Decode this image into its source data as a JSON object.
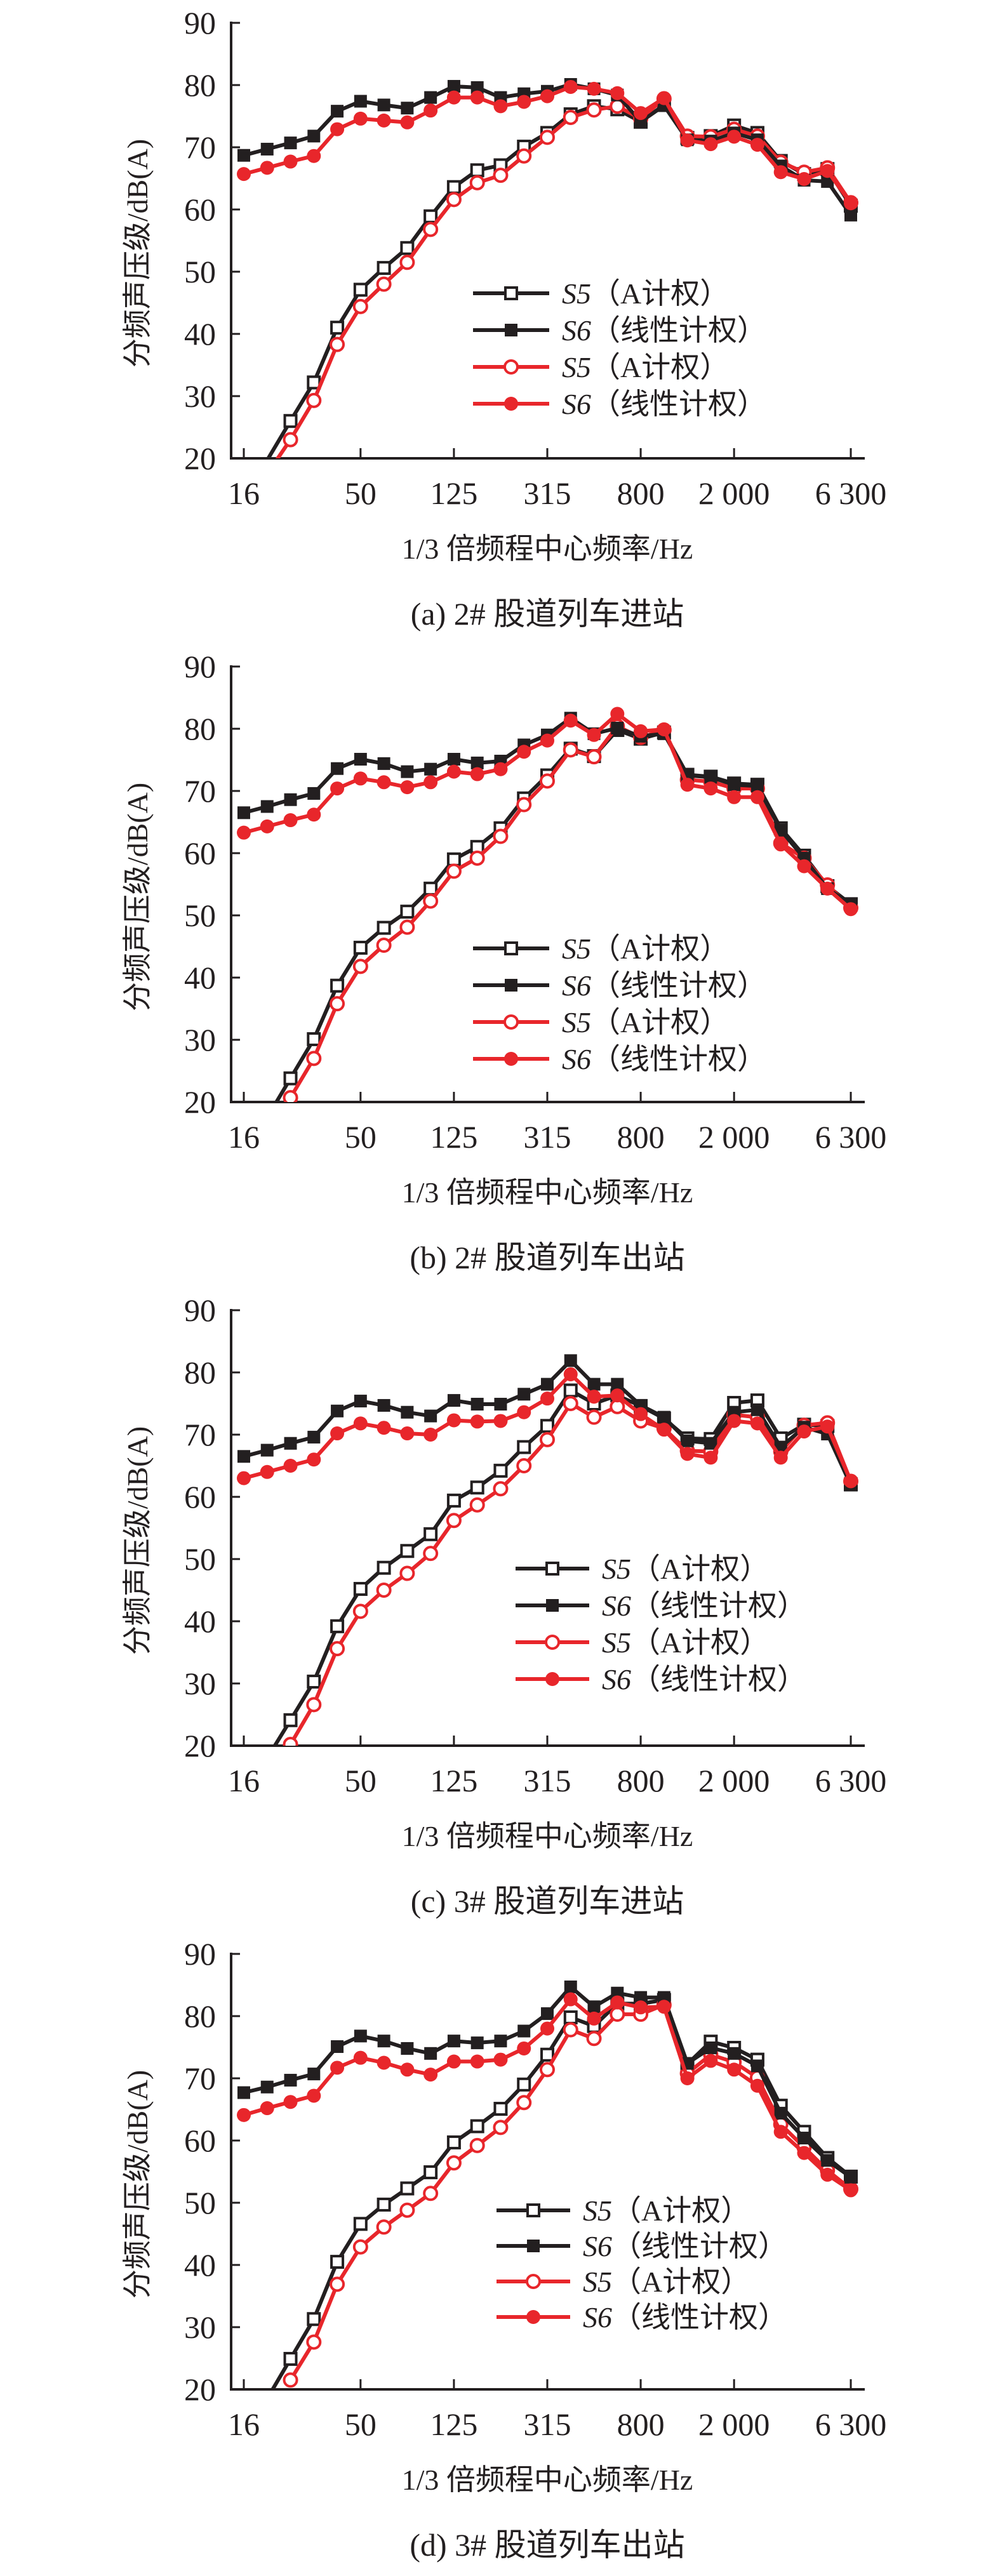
{
  "colors": {
    "black": "#231f20",
    "red": "#e8262b"
  },
  "chart_data": [
    {
      "type": "line",
      "caption": "(a) 2# 股道列车进站",
      "xlabel": "1/3 倍频程中心频率/Hz",
      "ylabel": "分频声压级/dB(A)",
      "x_scale": "categorical (log-spaced 1/3 octave bands)",
      "x": [
        16,
        20,
        25,
        31.5,
        40,
        50,
        63,
        80,
        100,
        125,
        160,
        200,
        250,
        315,
        400,
        500,
        630,
        800,
        1000,
        1250,
        1600,
        2000,
        2500,
        3150,
        4000,
        5000,
        6300
      ],
      "x_tick_labels": [
        {
          "x": 16,
          "label": "16"
        },
        {
          "x": 50,
          "label": "50"
        },
        {
          "x": 125,
          "label": "125"
        },
        {
          "x": 315,
          "label": "315"
        },
        {
          "x": 800,
          "label": "800"
        },
        {
          "x": 2000,
          "label": "2 000"
        },
        {
          "x": 6300,
          "label": "6 300"
        }
      ],
      "y_ticks": [
        20,
        30,
        40,
        50,
        60,
        70,
        80,
        90
      ],
      "ylim": [
        20,
        90
      ],
      "grid": false,
      "legend_position": "center-right",
      "series": [
        {
          "name": "S5（A计权）",
          "prefix": "S5",
          "suffix": "（A计权）",
          "color": "black",
          "marker": "open-square",
          "values": [
            null,
            19.7,
            26.0,
            32.2,
            41.0,
            47.1,
            50.6,
            53.8,
            58.9,
            63.6,
            66.3,
            67.1,
            70.1,
            72.3,
            75.3,
            76.6,
            76.1,
            74.1,
            76.8,
            71.5,
            71.8,
            73.5,
            72.3,
            67.8,
            65.7,
            66.5,
            60.6
          ]
        },
        {
          "name": "S6（线性计权）",
          "prefix": "S6",
          "suffix": "（线性计权）",
          "color": "black",
          "marker": "filled-square",
          "values": [
            68.7,
            69.7,
            70.7,
            71.8,
            75.8,
            77.4,
            76.8,
            76.3,
            78.0,
            79.8,
            79.6,
            78.0,
            78.6,
            79.0,
            80.1,
            79.4,
            78.4,
            74.1,
            76.7,
            71.2,
            71.0,
            72.3,
            71.2,
            67.0,
            64.7,
            64.5,
            59.1
          ]
        },
        {
          "name": "S5（A计权）",
          "prefix": "S5",
          "suffix": "（A计权）",
          "color": "red",
          "marker": "open-circle",
          "values": [
            null,
            17.5,
            23.0,
            29.3,
            38.3,
            44.4,
            48.0,
            51.5,
            56.8,
            61.6,
            64.3,
            65.5,
            68.6,
            71.6,
            74.8,
            76.0,
            76.6,
            74.6,
            77.8,
            71.8,
            71.7,
            72.9,
            71.8,
            67.6,
            66.0,
            66.7,
            61.1
          ]
        },
        {
          "name": "S6（线性计权）",
          "prefix": "S6",
          "suffix": "（线性计权）",
          "color": "red",
          "marker": "filled-circle",
          "values": [
            65.7,
            66.7,
            67.7,
            68.6,
            72.9,
            74.6,
            74.3,
            74.0,
            75.9,
            78.0,
            78.0,
            76.6,
            77.3,
            78.2,
            79.7,
            79.4,
            78.7,
            75.5,
            77.9,
            71.1,
            70.5,
            71.7,
            70.4,
            66.0,
            64.9,
            66.2,
            61.0
          ]
        }
      ]
    },
    {
      "type": "line",
      "caption": "(b) 2# 股道列车出站",
      "xlabel": "1/3 倍频程中心频率/Hz",
      "ylabel": "分频声压级/dB(A)",
      "x_scale": "categorical (log-spaced 1/3 octave bands)",
      "x": [
        16,
        20,
        25,
        31.5,
        40,
        50,
        63,
        80,
        100,
        125,
        160,
        200,
        250,
        315,
        400,
        500,
        630,
        800,
        1000,
        1250,
        1600,
        2000,
        2500,
        3150,
        4000,
        5000,
        6300
      ],
      "x_tick_labels": [
        {
          "x": 16,
          "label": "16"
        },
        {
          "x": 50,
          "label": "50"
        },
        {
          "x": 125,
          "label": "125"
        },
        {
          "x": 315,
          "label": "315"
        },
        {
          "x": 800,
          "label": "800"
        },
        {
          "x": 2000,
          "label": "2 000"
        },
        {
          "x": 6300,
          "label": "6 300"
        }
      ],
      "y_ticks": [
        20,
        30,
        40,
        50,
        60,
        70,
        80,
        90
      ],
      "ylim": [
        20,
        90
      ],
      "grid": false,
      "legend_position": "center-right",
      "series": [
        {
          "name": "S5（A计权）",
          "prefix": "S5",
          "suffix": "（A计权）",
          "color": "black",
          "marker": "open-square",
          "values": [
            null,
            17.5,
            23.8,
            30.1,
            38.7,
            44.8,
            48.0,
            50.6,
            54.3,
            59.0,
            61.0,
            64.0,
            68.8,
            72.5,
            76.8,
            75.6,
            79.8,
            78.4,
            79.4,
            72.6,
            72.3,
            71.2,
            71.0,
            64.0,
            59.6,
            54.7,
            51.8
          ]
        },
        {
          "name": "S6（线性计权）",
          "prefix": "S6",
          "suffix": "（线性计权）",
          "color": "black",
          "marker": "filled-square",
          "values": [
            66.5,
            67.5,
            68.6,
            69.6,
            73.6,
            75.1,
            74.4,
            73.1,
            73.5,
            75.1,
            74.5,
            74.8,
            77.4,
            79.0,
            81.7,
            79.2,
            80.1,
            78.8,
            79.2,
            72.5,
            72.2,
            71.0,
            70.8,
            63.7,
            59.2,
            54.3,
            51.8
          ]
        },
        {
          "name": "S5（A计权）",
          "prefix": "S5",
          "suffix": "（A计权）",
          "color": "red",
          "marker": "open-circle",
          "values": [
            null,
            null,
            20.7,
            27.0,
            35.8,
            41.8,
            45.2,
            48.1,
            52.3,
            57.1,
            59.2,
            62.7,
            67.8,
            71.6,
            76.6,
            75.5,
            80.4,
            78.6,
            79.8,
            71.8,
            71.5,
            70.4,
            70.4,
            61.6,
            59.2,
            54.9,
            51.2
          ]
        },
        {
          "name": "S6（线性计权）",
          "prefix": "S6",
          "suffix": "（线性计权）",
          "color": "red",
          "marker": "filled-circle",
          "values": [
            63.3,
            64.3,
            65.3,
            66.2,
            70.4,
            72.0,
            71.4,
            70.6,
            71.4,
            73.1,
            72.7,
            73.5,
            76.3,
            78.1,
            81.3,
            79.0,
            82.4,
            79.6,
            79.9,
            71.0,
            70.4,
            69.0,
            69.0,
            61.4,
            57.9,
            54.3,
            51.0
          ]
        }
      ]
    },
    {
      "type": "line",
      "caption": "(c) 3# 股道列车进站",
      "xlabel": "1/3 倍频程中心频率/Hz",
      "ylabel": "分频声压级/dB(A)",
      "x_scale": "categorical (log-spaced 1/3 octave bands)",
      "x": [
        16,
        20,
        25,
        31.5,
        40,
        50,
        63,
        80,
        100,
        125,
        160,
        200,
        250,
        315,
        400,
        500,
        630,
        800,
        1000,
        1250,
        1600,
        2000,
        2500,
        3150,
        4000,
        5000,
        6300
      ],
      "x_tick_labels": [
        {
          "x": 16,
          "label": "16"
        },
        {
          "x": 50,
          "label": "50"
        },
        {
          "x": 125,
          "label": "125"
        },
        {
          "x": 315,
          "label": "315"
        },
        {
          "x": 800,
          "label": "800"
        },
        {
          "x": 2000,
          "label": "2 000"
        },
        {
          "x": 6300,
          "label": "6 300"
        }
      ],
      "y_ticks": [
        20,
        30,
        40,
        50,
        60,
        70,
        80,
        90
      ],
      "ylim": [
        20,
        90
      ],
      "grid": false,
      "legend_position": "center-right",
      "series": [
        {
          "name": "S5（A计权）",
          "prefix": "S5",
          "suffix": "（A计权）",
          "color": "black",
          "marker": "open-square",
          "values": [
            null,
            18.0,
            24.1,
            30.3,
            39.2,
            45.2,
            48.6,
            51.3,
            54.0,
            59.4,
            61.5,
            64.2,
            68.0,
            71.4,
            77.1,
            75.0,
            76.3,
            74.6,
            72.6,
            69.4,
            69.3,
            75.1,
            75.5,
            69.4,
            71.6,
            71.4,
            62.0
          ]
        },
        {
          "name": "S6（线性计权）",
          "prefix": "S6",
          "suffix": "（线性计权）",
          "color": "black",
          "marker": "filled-square",
          "values": [
            66.5,
            67.5,
            68.6,
            69.6,
            73.8,
            75.4,
            74.7,
            73.6,
            73.0,
            75.5,
            74.9,
            74.9,
            76.5,
            78.1,
            81.9,
            78.1,
            78.1,
            74.7,
            72.8,
            69.0,
            68.6,
            73.6,
            74.0,
            68.0,
            71.2,
            70.1,
            61.9
          ]
        },
        {
          "name": "S5（A计权）",
          "prefix": "S5",
          "suffix": "（A计权）",
          "color": "red",
          "marker": "open-circle",
          "values": [
            null,
            null,
            20.2,
            26.6,
            35.6,
            41.6,
            45.0,
            47.7,
            50.9,
            56.2,
            58.7,
            61.3,
            65.0,
            69.2,
            75.0,
            72.8,
            74.5,
            72.2,
            71.0,
            67.4,
            67.3,
            73.2,
            72.8,
            67.3,
            71.5,
            71.9,
            62.5
          ]
        },
        {
          "name": "S6（线性计权）",
          "prefix": "S6",
          "suffix": "（线性计权）",
          "color": "red",
          "marker": "filled-circle",
          "values": [
            63.0,
            64.0,
            65.0,
            66.0,
            70.2,
            71.8,
            71.1,
            70.2,
            70.0,
            72.3,
            72.1,
            72.2,
            73.6,
            75.8,
            79.7,
            76.1,
            76.3,
            73.3,
            70.8,
            66.9,
            66.3,
            72.2,
            71.8,
            66.3,
            70.5,
            71.3,
            62.5
          ]
        }
      ]
    },
    {
      "type": "line",
      "caption": "(d) 3# 股道列车出站",
      "xlabel": "1/3 倍频程中心频率/Hz",
      "ylabel": "分频声压级/dB(A)",
      "x_scale": "categorical (log-spaced 1/3 octave bands)",
      "x": [
        16,
        20,
        25,
        31.5,
        40,
        50,
        63,
        80,
        100,
        125,
        160,
        200,
        250,
        315,
        400,
        500,
        630,
        800,
        1000,
        1250,
        1600,
        2000,
        2500,
        3150,
        4000,
        5000,
        6300
      ],
      "x_tick_labels": [
        {
          "x": 16,
          "label": "16"
        },
        {
          "x": 50,
          "label": "50"
        },
        {
          "x": 125,
          "label": "125"
        },
        {
          "x": 315,
          "label": "315"
        },
        {
          "x": 800,
          "label": "800"
        },
        {
          "x": 2000,
          "label": "2 000"
        },
        {
          "x": 6300,
          "label": "6 300"
        }
      ],
      "y_ticks": [
        20,
        30,
        40,
        50,
        60,
        70,
        80,
        90
      ],
      "ylim": [
        20,
        90
      ],
      "grid": false,
      "legend_position": "center-right",
      "series": [
        {
          "name": "S5（A计权）",
          "prefix": "S5",
          "suffix": "（A计权）",
          "color": "black",
          "marker": "open-square",
          "values": [
            null,
            18.5,
            24.9,
            31.3,
            40.5,
            46.6,
            49.7,
            52.3,
            54.9,
            59.7,
            62.3,
            65.1,
            69.0,
            73.8,
            79.8,
            78.4,
            82.0,
            82.0,
            82.6,
            72.3,
            75.9,
            74.9,
            73.0,
            65.6,
            61.4,
            57.2,
            54.2
          ]
        },
        {
          "name": "S6（线性计权）",
          "prefix": "S6",
          "suffix": "（线性计权）",
          "color": "black",
          "marker": "filled-square",
          "values": [
            67.7,
            68.6,
            69.7,
            70.7,
            75.1,
            76.8,
            76.0,
            74.8,
            74.0,
            76.0,
            75.7,
            76.0,
            77.6,
            80.4,
            84.7,
            81.5,
            83.7,
            83.0,
            83.0,
            72.4,
            74.9,
            74.0,
            72.0,
            64.4,
            60.4,
            56.8,
            54.1
          ]
        },
        {
          "name": "S5（A计权）",
          "prefix": "S5",
          "suffix": "（A计权）",
          "color": "red",
          "marker": "open-circle",
          "values": [
            null,
            null,
            21.5,
            27.6,
            36.9,
            42.9,
            46.1,
            48.8,
            51.5,
            56.4,
            59.2,
            62.1,
            66.1,
            71.4,
            77.8,
            76.4,
            80.3,
            80.3,
            81.8,
            70.8,
            73.8,
            72.6,
            70.1,
            62.6,
            58.9,
            55.2,
            52.2
          ]
        },
        {
          "name": "S6（线性计权）",
          "prefix": "S6",
          "suffix": "（线性计权）",
          "color": "red",
          "marker": "filled-circle",
          "values": [
            64.1,
            65.2,
            66.2,
            67.2,
            71.7,
            73.3,
            72.5,
            71.4,
            70.6,
            72.7,
            72.7,
            73.0,
            74.8,
            78.0,
            82.7,
            79.6,
            82.2,
            81.4,
            81.5,
            70.0,
            72.8,
            71.4,
            68.8,
            61.4,
            58.0,
            54.5,
            52.0
          ]
        }
      ]
    }
  ]
}
